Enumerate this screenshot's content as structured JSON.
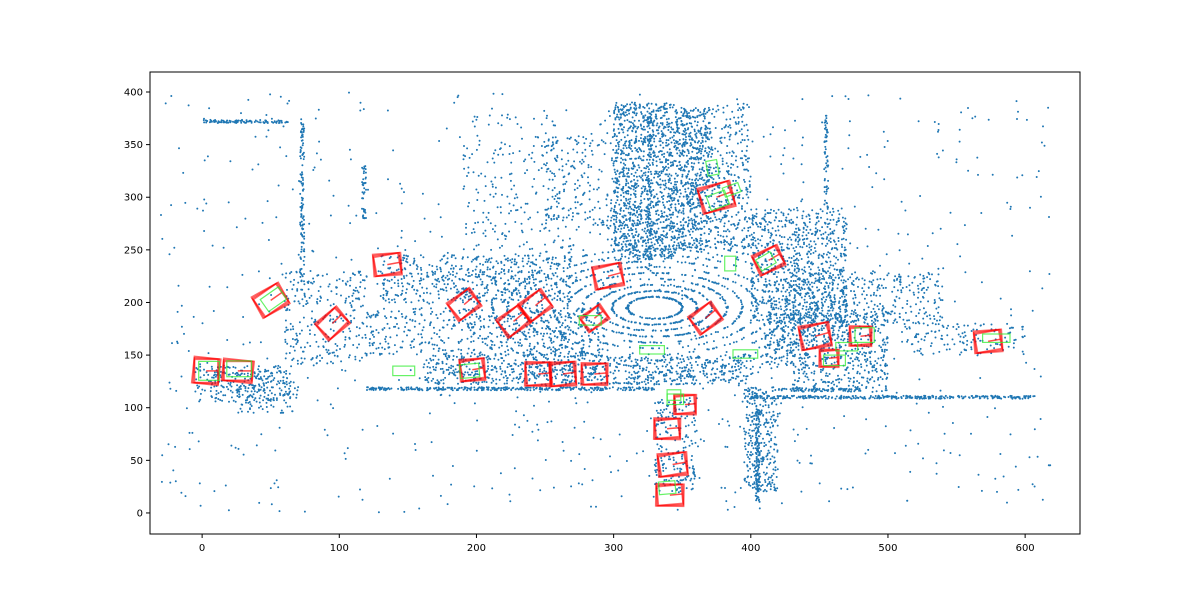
{
  "chart_data": {
    "type": "scatter",
    "title": "",
    "xlabel": "",
    "ylabel": "",
    "xlim": [
      -38,
      640
    ],
    "ylim": [
      -20,
      419
    ],
    "x_ticks": [
      0,
      100,
      200,
      300,
      400,
      500,
      600
    ],
    "y_ticks": [
      0,
      50,
      100,
      150,
      200,
      250,
      300,
      350,
      400
    ],
    "x_tick_labels": [
      "0",
      "100",
      "200",
      "300",
      "400",
      "500",
      "600"
    ],
    "y_tick_labels": [
      "0",
      "50",
      "100",
      "150",
      "200",
      "250",
      "300",
      "350",
      "400"
    ],
    "grid": false,
    "legend": "none",
    "colors": {
      "points": "#1f77b4",
      "prediction_boxes": "#ff0000",
      "ground_truth_boxes": "#33ee33"
    },
    "point_clusters": [
      {
        "kind": "ring",
        "cx": 330,
        "cy": 195,
        "rx_min": 20,
        "rx_max": 140,
        "ry_ratio": 0.52,
        "n": 1700,
        "arc": [
          0,
          6.283
        ]
      },
      {
        "kind": "rect",
        "x": [
          300,
          345
        ],
        "y": [
          240,
          390
        ],
        "n": 1100
      },
      {
        "kind": "rect",
        "x": [
          345,
          370
        ],
        "y": [
          250,
          385
        ],
        "n": 600
      },
      {
        "kind": "rect",
        "x": [
          400,
          470
        ],
        "y": [
          180,
          290
        ],
        "n": 700
      },
      {
        "kind": "rect",
        "x": [
          410,
          500
        ],
        "y": [
          140,
          190
        ],
        "n": 500
      },
      {
        "kind": "rect",
        "x": [
          430,
          540
        ],
        "y": [
          180,
          230
        ],
        "n": 350
      },
      {
        "kind": "rect",
        "x": [
          130,
          270
        ],
        "y": [
          200,
          245
        ],
        "n": 500
      },
      {
        "kind": "rect",
        "x": [
          120,
          290
        ],
        "y": [
          150,
          195
        ],
        "n": 450
      },
      {
        "kind": "rect",
        "x": [
          60,
          120
        ],
        "y": [
          140,
          230
        ],
        "n": 260
      },
      {
        "kind": "rect",
        "x": [
          160,
          400
        ],
        "y": [
          122,
          150
        ],
        "n": 700
      },
      {
        "kind": "rect",
        "x": [
          190,
          260
        ],
        "y": [
          250,
          380
        ],
        "n": 180
      },
      {
        "kind": "rect",
        "x": [
          250,
          300
        ],
        "y": [
          270,
          360
        ],
        "n": 180
      },
      {
        "kind": "rect",
        "x": [
          330,
          360
        ],
        "y": [
          20,
          110
        ],
        "n": 200
      },
      {
        "kind": "rect",
        "x": [
          395,
          420
        ],
        "y": [
          20,
          120
        ],
        "n": 280
      },
      {
        "kind": "rect",
        "x": [
          370,
          400
        ],
        "y": [
          250,
          390
        ],
        "n": 300
      },
      {
        "kind": "rect",
        "x": [
          -5,
          65
        ],
        "y": [
          105,
          140
        ],
        "n": 260
      },
      {
        "kind": "rect",
        "x": [
          25,
          70
        ],
        "y": [
          95,
          125
        ],
        "n": 70
      },
      {
        "kind": "rect",
        "x": [
          510,
          600
        ],
        "y": [
          150,
          180
        ],
        "n": 120
      },
      {
        "kind": "rect",
        "x": [
          430,
          500
        ],
        "y": [
          115,
          140
        ],
        "n": 150
      },
      {
        "kind": "hline",
        "x": [
          120,
          330
        ],
        "y": 118,
        "n": 320
      },
      {
        "kind": "hline",
        "x": [
          400,
          607
        ],
        "y": 110,
        "n": 320
      },
      {
        "kind": "hline",
        "x": [
          420,
          480
        ],
        "y": 117,
        "n": 80
      },
      {
        "kind": "hline",
        "x": [
          0,
          63
        ],
        "y": 372,
        "n": 110
      },
      {
        "kind": "vline",
        "x": 73,
        "y": [
          220,
          375
        ],
        "n": 120
      },
      {
        "kind": "vline",
        "x": 118,
        "y": [
          280,
          330
        ],
        "n": 45
      },
      {
        "kind": "vline",
        "x": 405,
        "y": [
          10,
          100
        ],
        "n": 130
      },
      {
        "kind": "vline",
        "x": 326,
        "y": [
          230,
          380
        ],
        "n": 100
      },
      {
        "kind": "vline",
        "x": 455,
        "y": [
          290,
          380
        ],
        "n": 60
      },
      {
        "kind": "rect",
        "x": [
          -30,
          620
        ],
        "y": [
          0,
          400
        ],
        "n": 800
      }
    ],
    "pred_boxes": [
      {
        "x": 3,
        "y": 135,
        "w": 17,
        "h": 22,
        "a": 0
      },
      {
        "x": 26,
        "y": 135,
        "w": 20,
        "h": 18,
        "a": 0
      },
      {
        "x": 50,
        "y": 202,
        "w": 20,
        "h": 20,
        "a": 35
      },
      {
        "x": 95,
        "y": 180,
        "w": 18,
        "h": 18,
        "a": 45
      },
      {
        "x": 135,
        "y": 236,
        "w": 18,
        "h": 18,
        "a": 10
      },
      {
        "x": 191,
        "y": 198,
        "w": 18,
        "h": 18,
        "a": 40
      },
      {
        "x": 197,
        "y": 136,
        "w": 16,
        "h": 18,
        "a": 10
      },
      {
        "x": 227,
        "y": 182,
        "w": 18,
        "h": 18,
        "a": 40
      },
      {
        "x": 243,
        "y": 197,
        "w": 18,
        "h": 18,
        "a": 40
      },
      {
        "x": 245,
        "y": 132,
        "w": 17,
        "h": 20,
        "a": 5
      },
      {
        "x": 263,
        "y": 132,
        "w": 17,
        "h": 20,
        "a": 8
      },
      {
        "x": 286,
        "y": 185,
        "w": 16,
        "h": 14,
        "a": 40
      },
      {
        "x": 286,
        "y": 132,
        "w": 17,
        "h": 18,
        "a": 5
      },
      {
        "x": 296,
        "y": 225,
        "w": 19,
        "h": 19,
        "a": 15
      },
      {
        "x": 339,
        "y": 80,
        "w": 17,
        "h": 17,
        "a": 5
      },
      {
        "x": 343,
        "y": 46,
        "w": 19,
        "h": 19,
        "a": 10
      },
      {
        "x": 341,
        "y": 17,
        "w": 18,
        "h": 18,
        "a": 5
      },
      {
        "x": 352,
        "y": 103,
        "w": 14,
        "h": 16,
        "a": 5
      },
      {
        "x": 367,
        "y": 185,
        "w": 18,
        "h": 18,
        "a": 40
      },
      {
        "x": 375,
        "y": 300,
        "w": 22,
        "h": 22,
        "a": 20
      },
      {
        "x": 413,
        "y": 240,
        "w": 18,
        "h": 18,
        "a": 30
      },
      {
        "x": 447,
        "y": 168,
        "w": 20,
        "h": 20,
        "a": 15
      },
      {
        "x": 457,
        "y": 147,
        "w": 12,
        "h": 14,
        "a": 5
      },
      {
        "x": 480,
        "y": 168,
        "w": 14,
        "h": 16,
        "a": 5
      },
      {
        "x": 573,
        "y": 163,
        "w": 18,
        "h": 18,
        "a": 10
      }
    ],
    "gt_boxes": [
      {
        "x": 5,
        "y": 135,
        "w": 15,
        "h": 18,
        "a": 0
      },
      {
        "x": 27,
        "y": 137,
        "w": 18,
        "h": 15,
        "a": 0
      },
      {
        "x": 52,
        "y": 203,
        "w": 16,
        "h": 14,
        "a": 35
      },
      {
        "x": 147,
        "y": 135,
        "w": 16,
        "h": 9,
        "a": 0
      },
      {
        "x": 195,
        "y": 135,
        "w": 14,
        "h": 13,
        "a": 5
      },
      {
        "x": 328,
        "y": 155,
        "w": 18,
        "h": 8,
        "a": 0
      },
      {
        "x": 283,
        "y": 183,
        "w": 16,
        "h": 9,
        "a": 0
      },
      {
        "x": 344,
        "y": 112,
        "w": 10,
        "h": 10,
        "a": 0
      },
      {
        "x": 345,
        "y": 108,
        "w": 12,
        "h": 10,
        "a": 0
      },
      {
        "x": 339,
        "y": 24,
        "w": 12,
        "h": 12,
        "a": 5
      },
      {
        "x": 372,
        "y": 328,
        "w": 8,
        "h": 14,
        "a": 10
      },
      {
        "x": 386,
        "y": 307,
        "w": 12,
        "h": 9,
        "a": 20
      },
      {
        "x": 385,
        "y": 237,
        "w": 8,
        "h": 14,
        "a": 0
      },
      {
        "x": 396,
        "y": 151,
        "w": 18,
        "h": 8,
        "a": 0
      },
      {
        "x": 461,
        "y": 145,
        "w": 16,
        "h": 10,
        "a": 0
      },
      {
        "x": 470,
        "y": 158,
        "w": 16,
        "h": 8,
        "a": 0
      },
      {
        "x": 483,
        "y": 169,
        "w": 14,
        "h": 14,
        "a": 0
      },
      {
        "x": 579,
        "y": 166,
        "w": 20,
        "h": 8,
        "a": 0
      },
      {
        "x": 376,
        "y": 297,
        "w": 14,
        "h": 14,
        "a": 20
      },
      {
        "x": 411,
        "y": 239,
        "w": 12,
        "h": 12,
        "a": 30
      }
    ]
  }
}
